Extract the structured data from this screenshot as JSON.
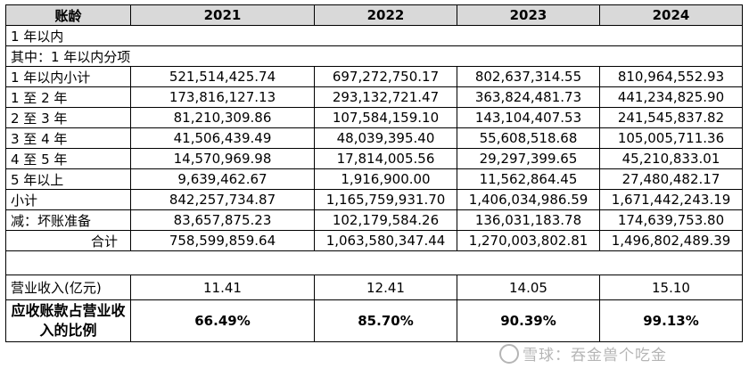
{
  "header": [
    "账龄",
    "2021",
    "2022",
    "2023",
    "2024"
  ],
  "rows": [
    {
      "label": "1 年以内",
      "values": [
        "",
        "",
        "",
        ""
      ]
    },
    {
      "label": "其中：1 年以内分项",
      "values": [
        "",
        "",
        "",
        ""
      ]
    },
    {
      "label": "1 年以内小计",
      "values": [
        "521,514,425.74",
        "697,272,750.17",
        "802,637,314.55",
        "810,964,552.93"
      ]
    },
    {
      "label": "1 至 2 年",
      "values": [
        "173,816,127.13",
        "293,132,721.47",
        "363,824,481.73",
        "441,234,825.90"
      ]
    },
    {
      "label": "2 至 3 年",
      "values": [
        "81,210,309.86",
        "107,584,159.10",
        "143,104,407.53",
        "241,545,837.82"
      ]
    },
    {
      "label": "3 至 4 年",
      "values": [
        "41,506,439.49",
        "48,039,395.40",
        "55,608,518.68",
        "105,005,711.36"
      ]
    },
    {
      "label": "4 至 5 年",
      "values": [
        "14,570,969.98",
        "17,814,005.56",
        "29,297,399.65",
        "45,210,833.01"
      ]
    },
    {
      "label": "5 年以上",
      "values": [
        "9,639,462.67",
        "1,916,900.00",
        "11,562,864.45",
        "27,480,482.17"
      ]
    },
    {
      "label": "小计",
      "values": [
        "842,257,734.87",
        "1,165,759,931.70",
        "1,406,034,986.59",
        "1,671,442,243.19"
      ]
    },
    {
      "label": "减：坏账准备",
      "values": [
        "83,657,875.23",
        "102,179,584.26",
        "136,031,183.78",
        "174,639,753.80"
      ]
    },
    {
      "label": "合计",
      "values": [
        "758,599,859.64",
        "1,063,580,347.44",
        "1,270,003,802.81",
        "1,496,802,489.39"
      ]
    }
  ],
  "revenue": {
    "label": "营业收入(亿元)",
    "values": [
      "11.41",
      "12.41",
      "14.05",
      "15.10"
    ]
  },
  "ratio": {
    "label": "应收账款占营业收入的比例",
    "values": [
      "66.49%",
      "85.70%",
      "90.39%",
      "99.13%"
    ]
  },
  "watermark": "雪球：吞金兽个吃金"
}
